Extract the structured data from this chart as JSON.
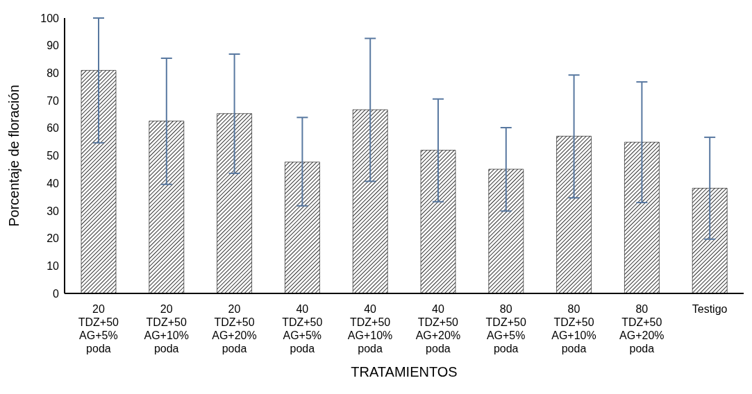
{
  "chart_data": {
    "type": "bar",
    "categories": [
      "20 TDZ+50 AG+5% poda",
      "20 TDZ+50 AG+10% poda",
      "20 TDZ+50 AG+20% poda",
      "40 TDZ+50 AG+5% poda",
      "40 TDZ+50 AG+10% poda",
      "40 TDZ+50 AG+20% poda",
      "80 TDZ+50 AG+5% poda",
      "80 TDZ+50 AG+10% poda",
      "80 TDZ+50 AG+20% poda",
      "Testigo"
    ],
    "values": [
      81,
      62.6,
      65.3,
      47.7,
      66.7,
      52,
      45.1,
      57.1,
      54.9,
      38.2
    ],
    "errors": [
      [
        54.7,
        100
      ],
      [
        39.6,
        85.4
      ],
      [
        43.6,
        86.9
      ],
      [
        31.8,
        63.9
      ],
      [
        40.7,
        92.6
      ],
      [
        33.3,
        70.6
      ],
      [
        29.9,
        60.2
      ],
      [
        34.7,
        79.3
      ],
      [
        33,
        76.8
      ],
      [
        19.7,
        56.7
      ]
    ],
    "color": "#000000",
    "xlabel": "TRATAMIENTOS",
    "ylabel": "Porcentaje de floración",
    "ylim": [
      0,
      100
    ],
    "yticks": [
      0,
      10,
      20,
      30,
      40,
      50,
      60,
      70,
      80,
      90,
      100
    ],
    "grid": false,
    "legend": false
  }
}
